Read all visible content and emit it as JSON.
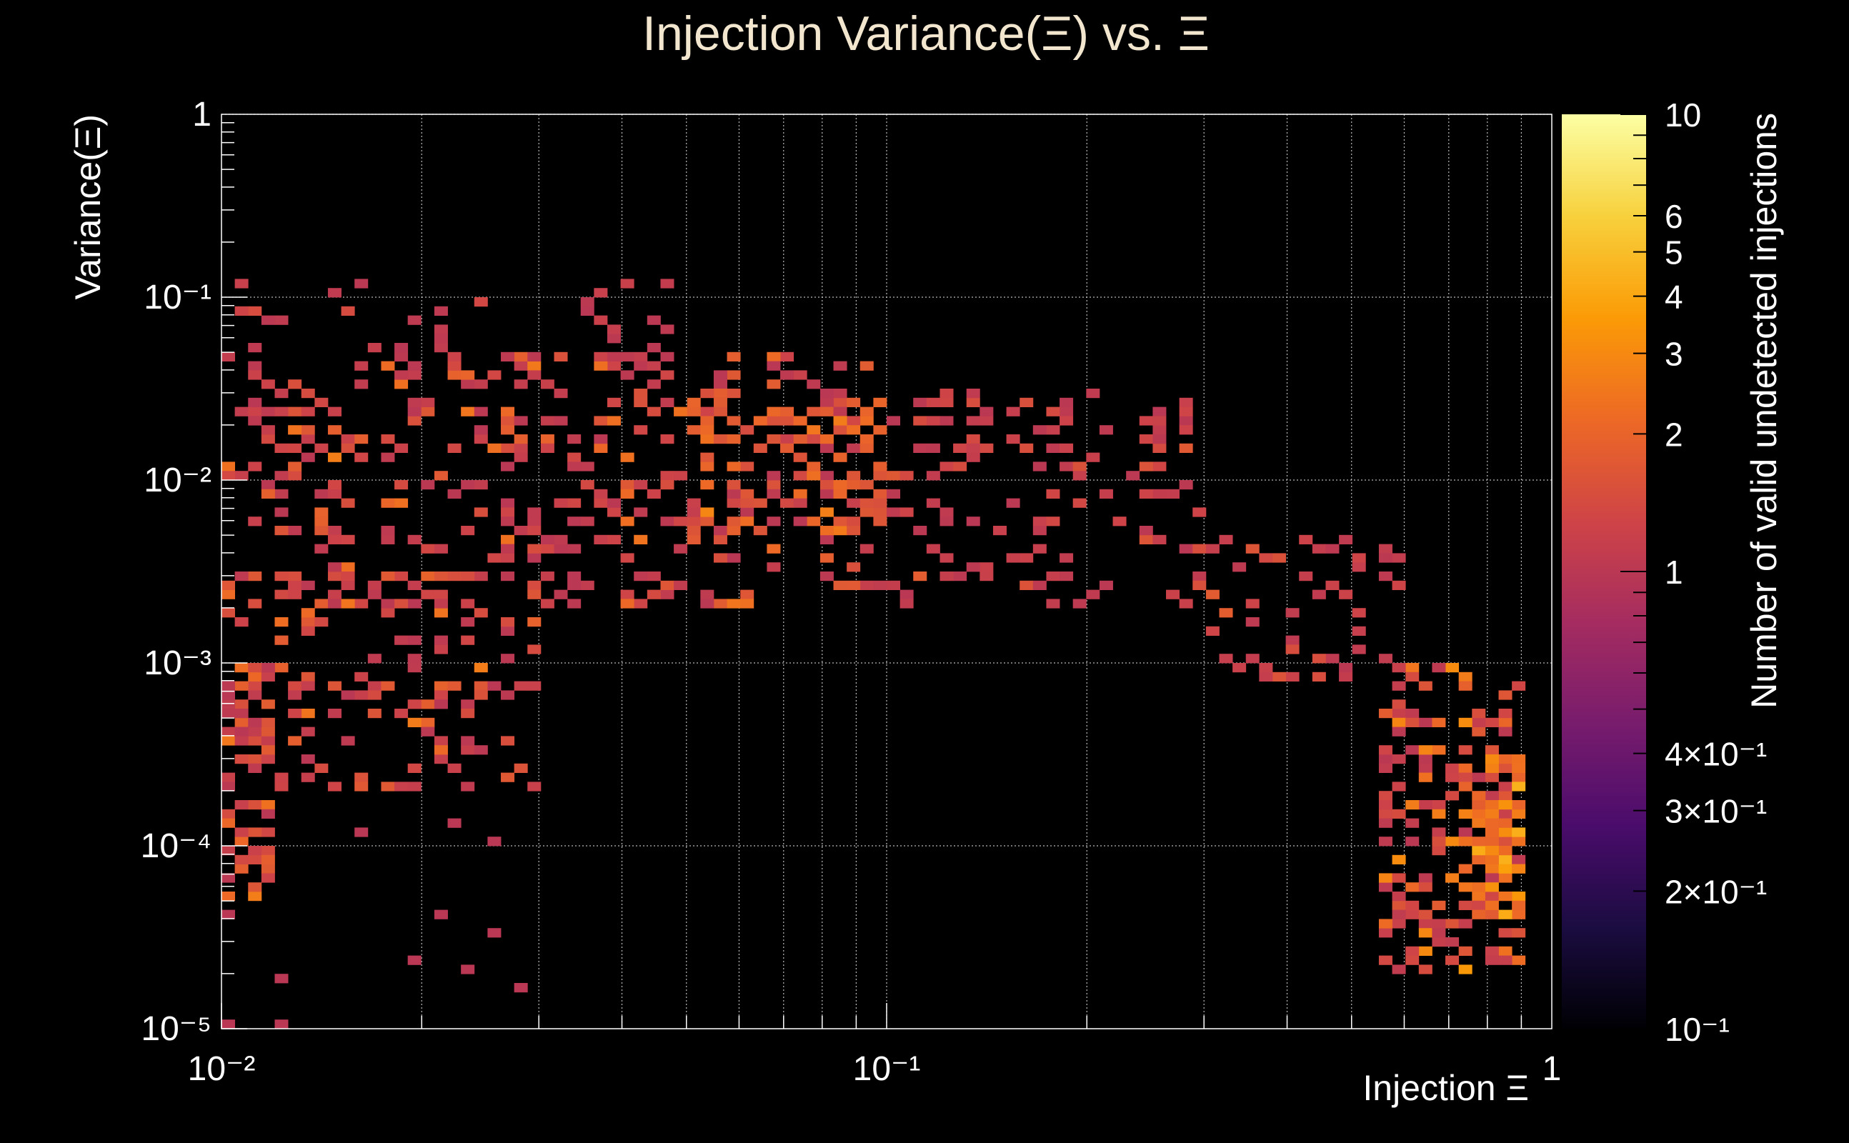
{
  "chart_data": {
    "type": "heatmap",
    "title": "Injection Variance(Ξ) vs. Ξ",
    "xlabel": "Injection Ξ",
    "ylabel": "Variance(Ξ)",
    "colorbar_label": "Number of valid undetected injections",
    "x_scale": "log",
    "y_scale": "log",
    "z_scale": "log",
    "xlim": [
      0.01,
      1
    ],
    "ylim": [
      1e-05,
      1
    ],
    "zlim": [
      0.1,
      10
    ],
    "grid": true,
    "x_ticks": [
      {
        "value": 0.01,
        "label": "10⁻²"
      },
      {
        "value": 0.1,
        "label": "10⁻¹"
      },
      {
        "value": 1,
        "label": "1"
      }
    ],
    "y_ticks": [
      {
        "value": 1e-05,
        "label": "10⁻⁵"
      },
      {
        "value": 0.0001,
        "label": "10⁻⁴"
      },
      {
        "value": 0.001,
        "label": "10⁻³"
      },
      {
        "value": 0.01,
        "label": "10⁻²"
      },
      {
        "value": 0.1,
        "label": "10⁻¹"
      },
      {
        "value": 1,
        "label": "1"
      }
    ],
    "z_ticks": [
      {
        "value": 0.1,
        "label": "10⁻¹"
      },
      {
        "value": 0.2,
        "label": "2×10⁻¹"
      },
      {
        "value": 0.3,
        "label": "3×10⁻¹"
      },
      {
        "value": 0.4,
        "label": "4×10⁻¹"
      },
      {
        "value": 1,
        "label": "1"
      },
      {
        "value": 2,
        "label": "2"
      },
      {
        "value": 3,
        "label": "3"
      },
      {
        "value": 4,
        "label": "4"
      },
      {
        "value": 5,
        "label": "5"
      },
      {
        "value": 6,
        "label": "6"
      },
      {
        "value": 10,
        "label": "10"
      }
    ],
    "colormap": [
      "#000004",
      "#1b0c41",
      "#4a0c6b",
      "#781c6d",
      "#a52c60",
      "#cf4446",
      "#ed6925",
      "#fb9b06",
      "#f7d13d",
      "#fcffa4"
    ],
    "clusters": [
      {
        "x_range": [
          0.01,
          0.03
        ],
        "y_range": [
          0.0002,
          0.003
        ],
        "count": 130,
        "z_range": [
          1,
          3
        ]
      },
      {
        "x_range": [
          0.01,
          0.012
        ],
        "y_range": [
          5e-05,
          0.001
        ],
        "count": 60,
        "z_range": [
          1,
          3
        ]
      },
      {
        "x_range": [
          0.01,
          0.1
        ],
        "y_range": [
          0.002,
          0.05
        ],
        "count": 360,
        "z_range": [
          1,
          3
        ]
      },
      {
        "x_range": [
          0.05,
          0.1
        ],
        "y_range": [
          0.005,
          0.03
        ],
        "count": 80,
        "z_range": [
          1.5,
          3
        ]
      },
      {
        "x_range": [
          0.01,
          0.05
        ],
        "y_range": [
          0.03,
          0.13
        ],
        "count": 45,
        "z_range": [
          1,
          1.5
        ]
      },
      {
        "x_range": [
          0.1,
          0.3
        ],
        "y_range": [
          0.002,
          0.03
        ],
        "count": 120,
        "z_range": [
          1,
          2
        ]
      },
      {
        "x_range": [
          0.3,
          0.6
        ],
        "y_range": [
          0.0008,
          0.005
        ],
        "count": 60,
        "z_range": [
          1,
          2
        ]
      },
      {
        "x_range": [
          0.55,
          0.9
        ],
        "y_range": [
          2e-05,
          0.001
        ],
        "count": 170,
        "z_range": [
          1,
          4
        ]
      },
      {
        "x_range": [
          0.75,
          0.9
        ],
        "y_range": [
          4e-05,
          0.0003
        ],
        "count": 50,
        "z_range": [
          2,
          7
        ]
      },
      {
        "x_range": [
          0.01,
          0.03
        ],
        "y_range": [
          1e-05,
          0.0002
        ],
        "count": 15,
        "z_range": [
          1,
          1
        ]
      }
    ]
  }
}
